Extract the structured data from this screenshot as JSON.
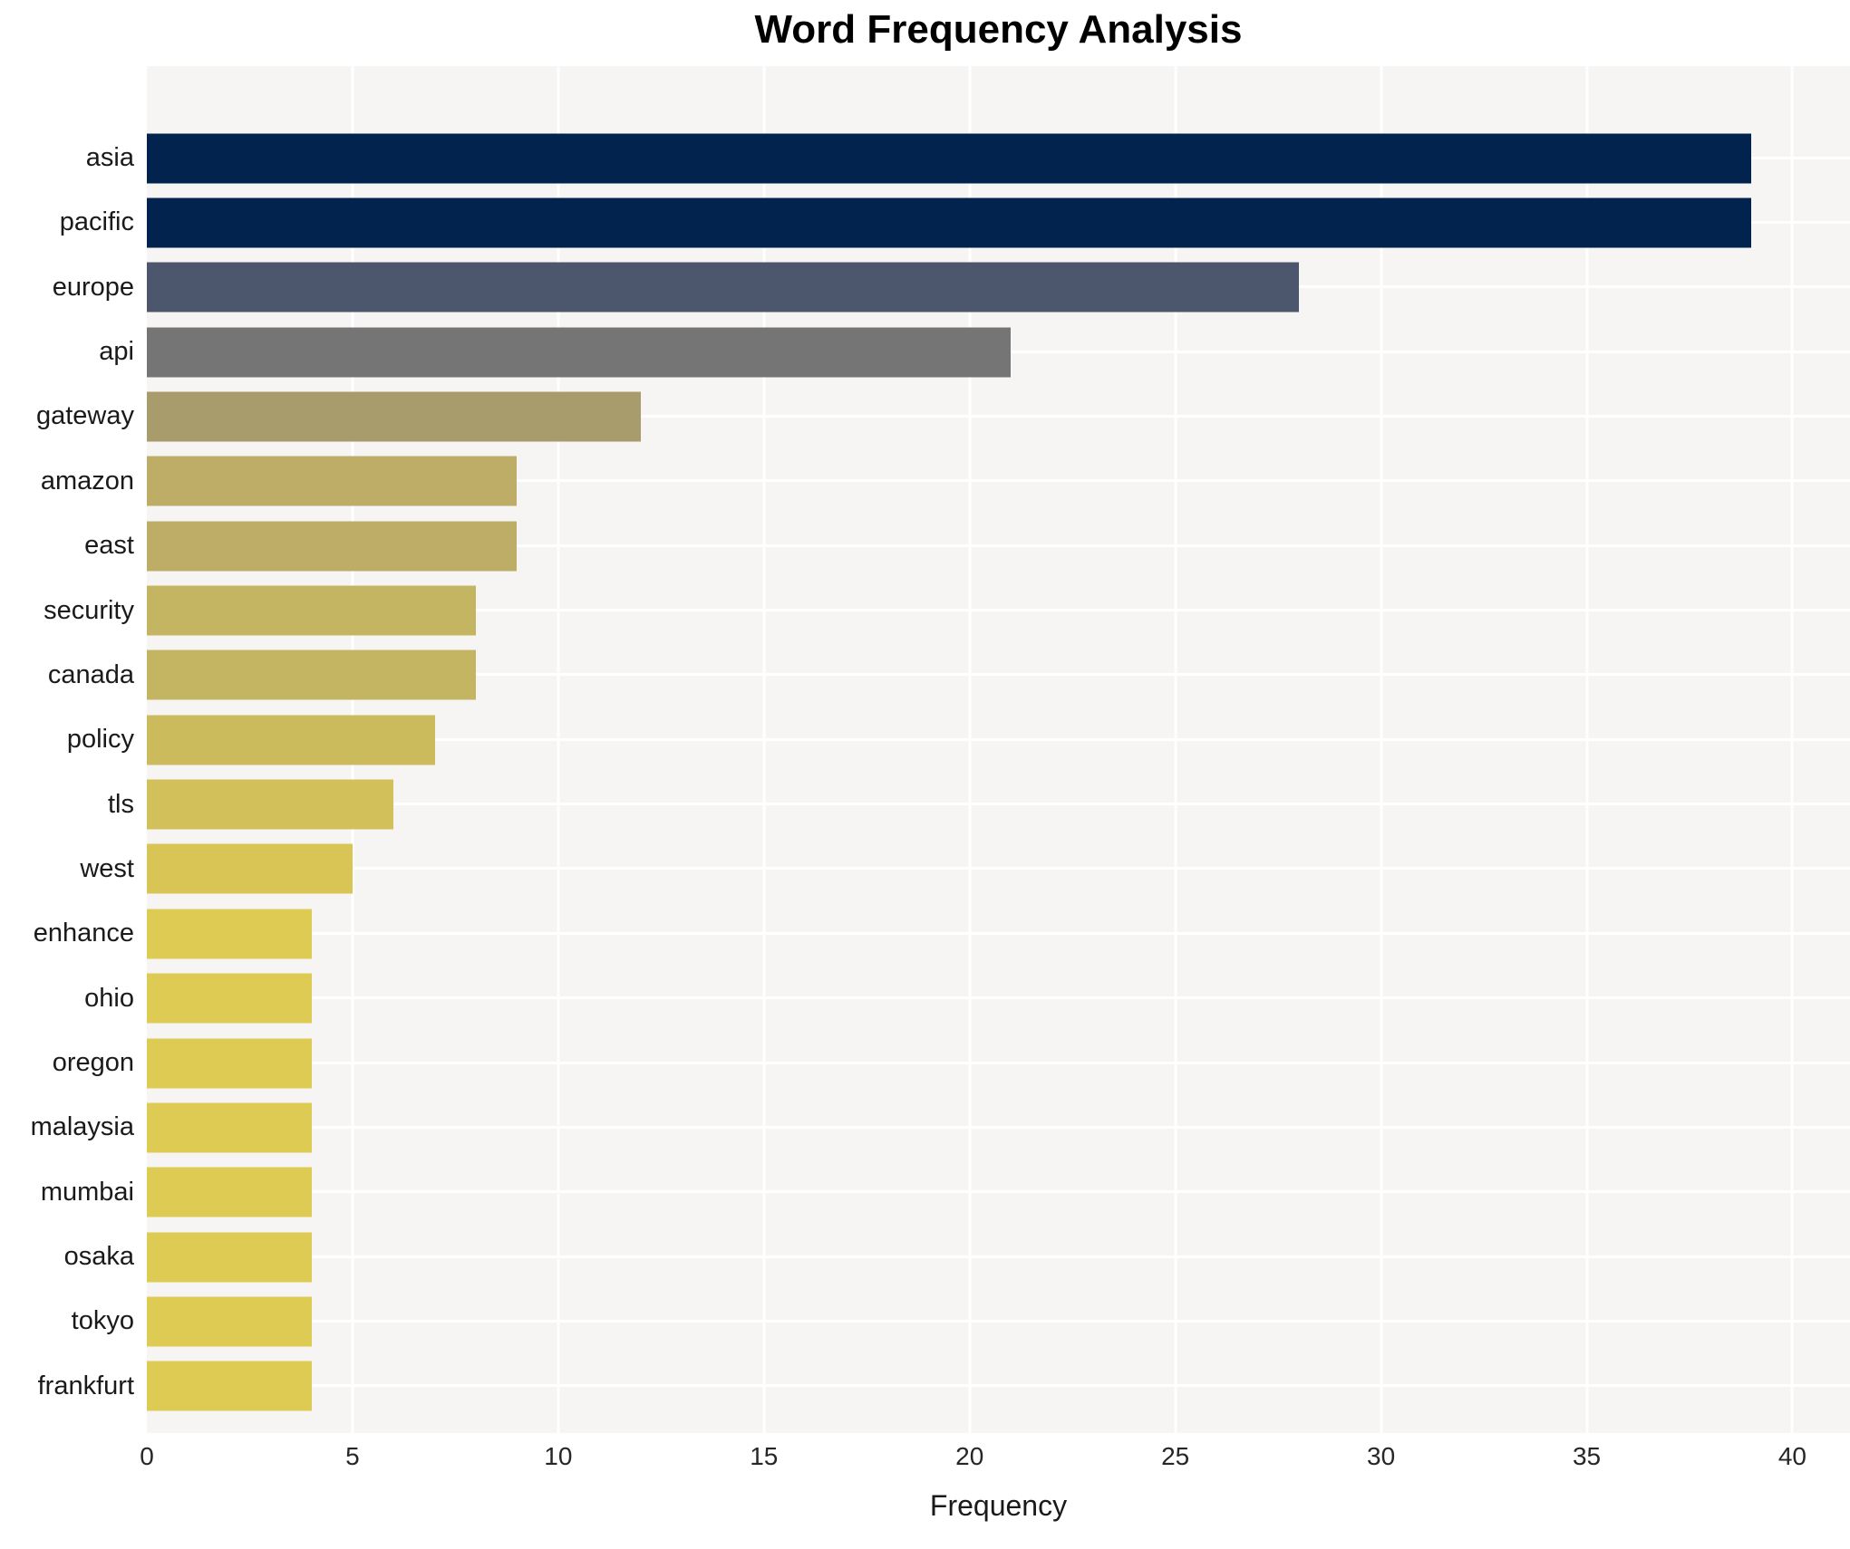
{
  "figure": {
    "title": "Word Frequency Analysis",
    "x_axis_label": "Frequency"
  },
  "chart_data": {
    "type": "bar",
    "orientation": "horizontal",
    "title": "Word Frequency Analysis",
    "xlabel": "Frequency",
    "ylabel": "",
    "categories": [
      "asia",
      "pacific",
      "europe",
      "api",
      "gateway",
      "amazon",
      "east",
      "security",
      "canada",
      "policy",
      "tls",
      "west",
      "enhance",
      "ohio",
      "oregon",
      "malaysia",
      "mumbai",
      "osaka",
      "tokyo",
      "frankfurt"
    ],
    "values": [
      39,
      39,
      28,
      21,
      12,
      9,
      9,
      8,
      8,
      7,
      6,
      5,
      4,
      4,
      4,
      4,
      4,
      4,
      4,
      4
    ],
    "bar_colors": [
      "#01234e",
      "#01234e",
      "#4c566c",
      "#757575",
      "#a89b6c",
      "#bead67",
      "#bead67",
      "#c4b563",
      "#c4b563",
      "#ccbb5d",
      "#d2c05a",
      "#d8c556",
      "#decb53",
      "#decb53",
      "#decb53",
      "#decb53",
      "#decb53",
      "#decb53",
      "#decb53",
      "#decb53"
    ],
    "xticks": [
      0,
      5,
      10,
      15,
      20,
      25,
      30,
      35,
      40
    ],
    "xlim": [
      0,
      41.4
    ],
    "legend": "none",
    "grid": "major vertical every 5 units + one horizontal line per category row",
    "styles": {
      "plot_background": "#f6f5f4",
      "gridline_color": "#ffffff",
      "page_background": "#ffffff",
      "title_color": "#000000",
      "axis_text_color": "#262626",
      "category_text_color": "#1a1a1a"
    }
  }
}
